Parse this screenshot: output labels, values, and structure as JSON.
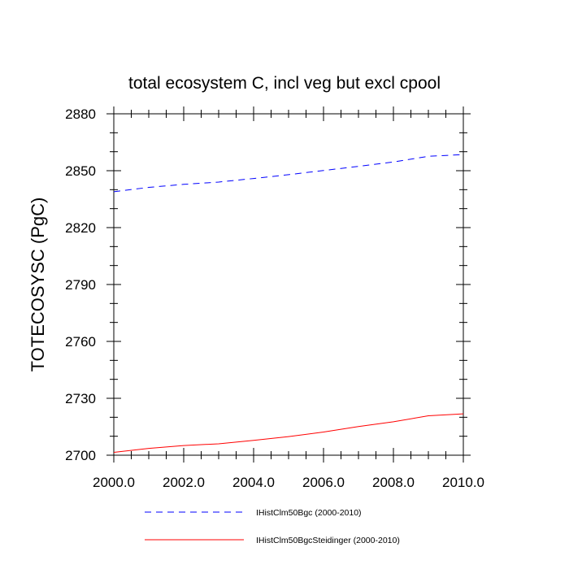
{
  "chart_data": {
    "type": "line",
    "title": "total ecosystem C, incl veg but excl cpool",
    "ylabel": "TOTECOSYSC  (PgC)",
    "xlabel": "",
    "xlim": [
      2000,
      2010
    ],
    "ylim": [
      2700,
      2880
    ],
    "x_ticks": [
      2000,
      2002,
      2004,
      2006,
      2008,
      2010
    ],
    "x_tick_labels": [
      "2000.0",
      "2002.0",
      "2004.0",
      "2006.0",
      "2008.0",
      "2010.0"
    ],
    "y_ticks": [
      2700,
      2730,
      2760,
      2790,
      2820,
      2850,
      2880
    ],
    "y_tick_labels": [
      "2700",
      "2730",
      "2760",
      "2790",
      "2820",
      "2850",
      "2880"
    ],
    "x": [
      2000,
      2001,
      2002,
      2003,
      2004,
      2005,
      2006,
      2007,
      2008,
      2009,
      2010
    ],
    "series": [
      {
        "name": "IHistClm50Bgc (2000-2010)",
        "color": "#0000ff",
        "dash": "dashed",
        "values": [
          2838.9,
          2841.2,
          2842.8,
          2844.0,
          2845.9,
          2847.9,
          2850.1,
          2852.3,
          2854.6,
          2857.6,
          2858.5
        ]
      },
      {
        "name": "IHistClm50BgcSteidinger (2000-2010)",
        "color": "#ff0000",
        "dash": "solid",
        "values": [
          2701.5,
          2703.6,
          2705.1,
          2706.0,
          2707.8,
          2709.8,
          2712.2,
          2715.1,
          2717.6,
          2720.8,
          2721.8
        ]
      }
    ],
    "legend_position": "bottom",
    "grid": false
  }
}
